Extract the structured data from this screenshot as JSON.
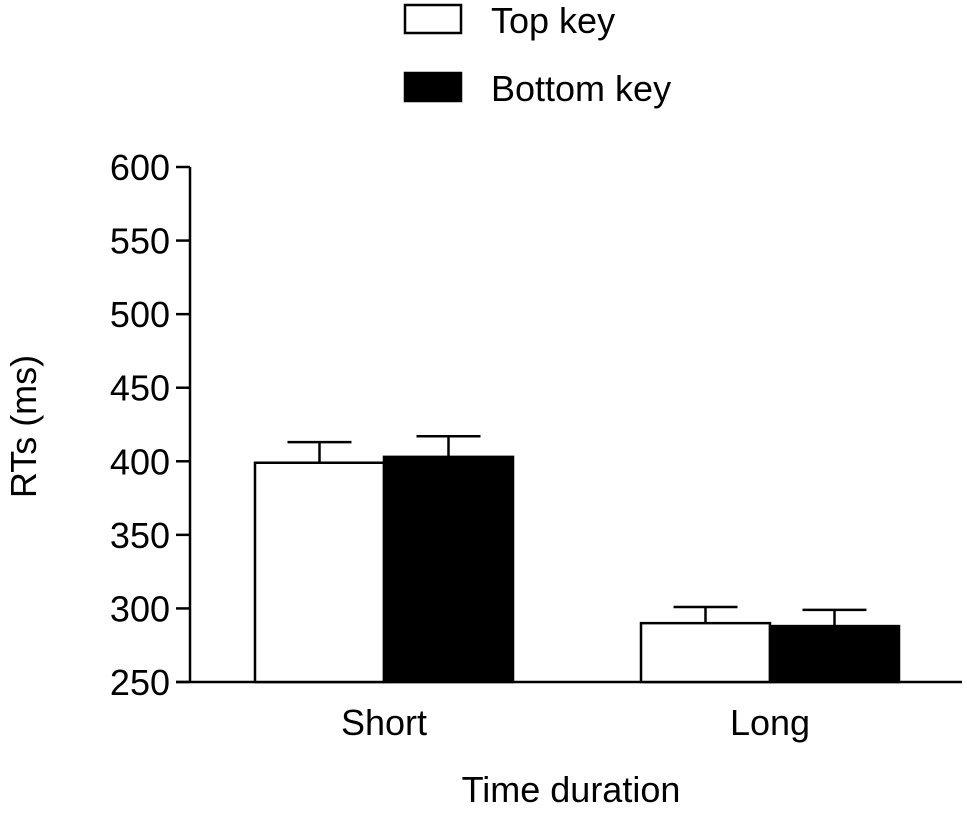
{
  "chart_data": {
    "type": "bar",
    "title": "",
    "xlabel": "Time duration",
    "ylabel": "RTs (ms)",
    "categories": [
      "Short",
      "Long"
    ],
    "ylim": [
      250,
      600
    ],
    "yticks": [
      "250",
      "300",
      "350",
      "400",
      "450",
      "500",
      "550",
      "600"
    ],
    "series": [
      {
        "name": "Top key",
        "values": [
          399,
          290
        ],
        "errors": [
          14,
          11
        ],
        "fill": "#ffffff",
        "stroke": "#000000"
      },
      {
        "name": "Bottom key",
        "values": [
          403,
          288
        ],
        "errors": [
          14,
          11
        ],
        "fill": "#000000",
        "stroke": "#000000"
      }
    ],
    "grid": false,
    "legend_position": "top-center",
    "error_bars": "upper"
  }
}
